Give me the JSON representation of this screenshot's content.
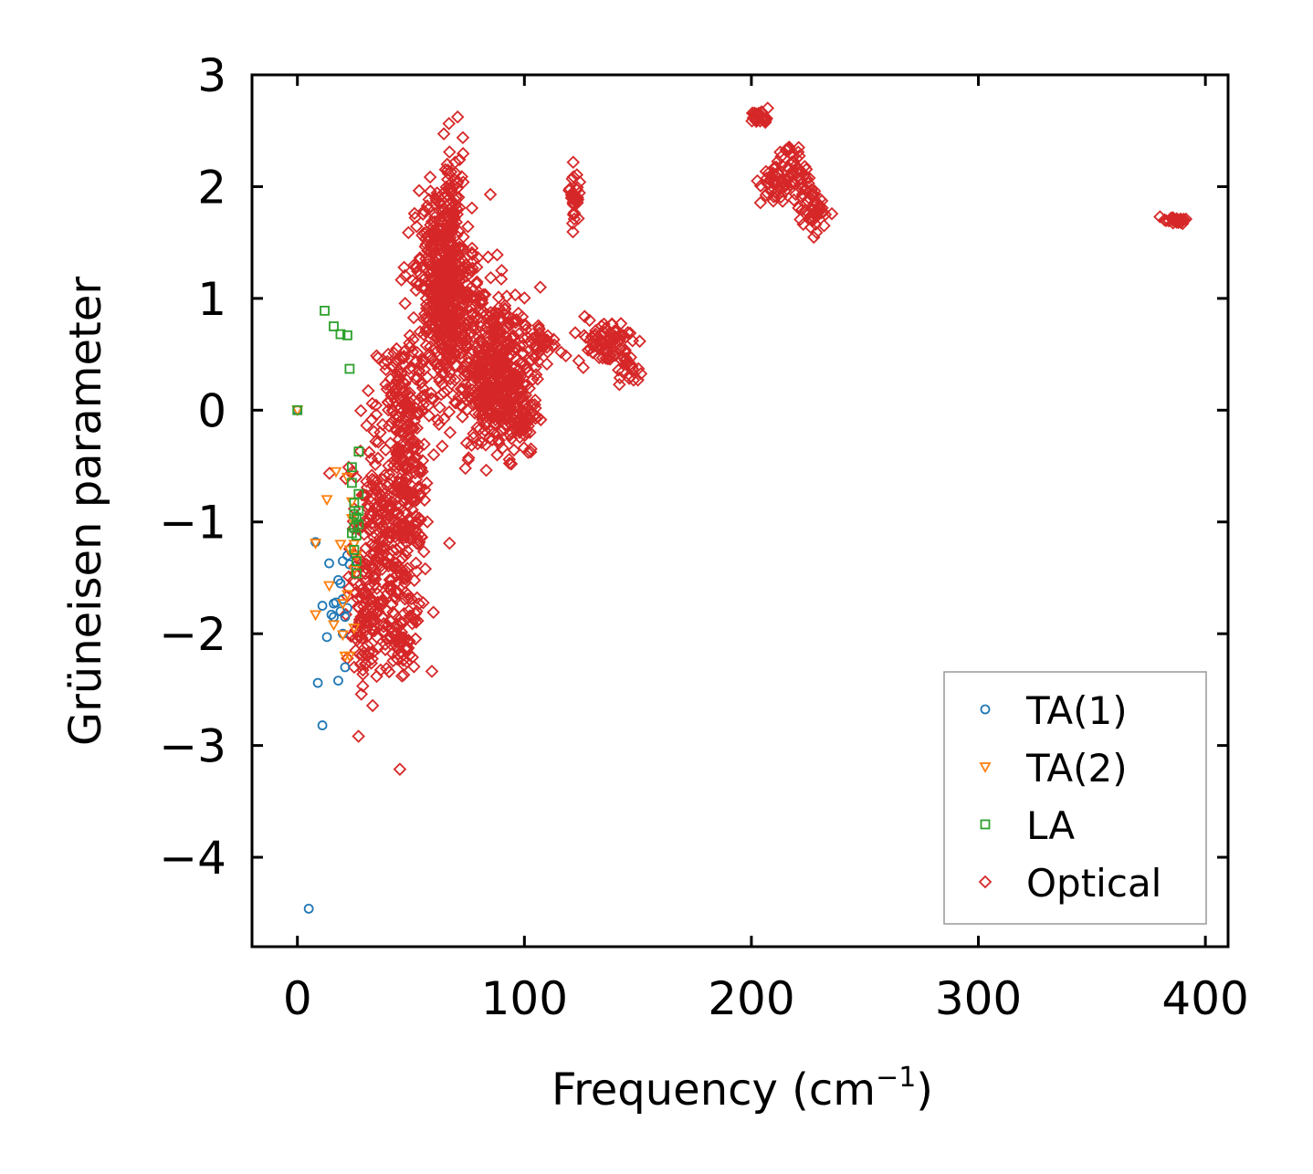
{
  "chart_data": {
    "type": "scatter",
    "title": "",
    "xlabel_main": "Frequency (cm",
    "xlabel_sup": "−1",
    "xlabel_close": ")",
    "ylabel": "Grüneisen parameter",
    "xlim": [
      -20,
      410
    ],
    "ylim": [
      -4.8,
      3.0
    ],
    "xticks": [
      0,
      100,
      200,
      300,
      400
    ],
    "yticks": [
      3,
      2,
      1,
      0,
      -1,
      -2,
      -3,
      -4
    ],
    "xtick_labels": [
      "0",
      "100",
      "200",
      "300",
      "400"
    ],
    "ytick_labels": [
      "3",
      "2",
      "1",
      "0",
      "−1",
      "−2",
      "−3",
      "−4"
    ],
    "legend_position": "lower-right",
    "series": [
      {
        "name": "TA(1)",
        "marker": "circle",
        "color": "#1f77b4",
        "points": [
          [
            0,
            0
          ],
          [
            5,
            -4.46
          ],
          [
            8,
            -1.18
          ],
          [
            9,
            -2.44
          ],
          [
            11,
            -2.82
          ],
          [
            11,
            -1.75
          ],
          [
            13,
            -2.03
          ],
          [
            14,
            -1.37
          ],
          [
            15,
            -1.83
          ],
          [
            16,
            -1.73
          ],
          [
            17,
            -1.72
          ],
          [
            18,
            -1.52
          ],
          [
            18,
            -2.42
          ],
          [
            19,
            -1.55
          ],
          [
            19,
            -1.8
          ],
          [
            20,
            -1.35
          ],
          [
            20,
            -1.69
          ],
          [
            21,
            -2.3
          ],
          [
            21,
            -1.85
          ],
          [
            22,
            -1.3
          ],
          [
            22,
            -1.77
          ],
          [
            23,
            -1.38
          ],
          [
            20,
            -2.0
          ],
          [
            16,
            -1.85
          ]
        ]
      },
      {
        "name": "TA(2)",
        "marker": "triangle-down",
        "color": "#ff7f0e",
        "points": [
          [
            0,
            0
          ],
          [
            8,
            -1.19
          ],
          [
            8,
            -1.83
          ],
          [
            13,
            -0.8
          ],
          [
            14,
            -1.57
          ],
          [
            16,
            -1.92
          ],
          [
            17,
            -0.55
          ],
          [
            19,
            -1.2
          ],
          [
            20,
            -1.73
          ],
          [
            20,
            -2.01
          ],
          [
            21,
            -2.2
          ],
          [
            22,
            -1.65
          ],
          [
            23,
            -2.2
          ],
          [
            23,
            -1.25
          ],
          [
            24,
            -0.82
          ],
          [
            24,
            -0.97
          ],
          [
            25,
            -1.2
          ],
          [
            25,
            -1.43
          ],
          [
            25,
            -1.95
          ],
          [
            26,
            -1.3
          ],
          [
            22,
            -0.6
          ]
        ]
      },
      {
        "name": "LA",
        "marker": "square",
        "color": "#2ca02c",
        "points": [
          [
            0,
            0
          ],
          [
            12,
            0.89
          ],
          [
            16,
            0.75
          ],
          [
            19,
            0.68
          ],
          [
            22,
            0.67
          ],
          [
            23,
            0.37
          ],
          [
            24,
            -0.51
          ],
          [
            24,
            -0.65
          ],
          [
            25,
            -0.83
          ],
          [
            25,
            -0.93
          ],
          [
            25,
            -1.05
          ],
          [
            26,
            -0.96
          ],
          [
            26,
            -1.12
          ],
          [
            26,
            -1.46
          ],
          [
            27,
            -0.37
          ],
          [
            27,
            -0.9
          ],
          [
            27,
            -1.02
          ],
          [
            25,
            -1.25
          ],
          [
            26,
            -1.35
          ],
          [
            24,
            -1.1
          ],
          [
            27,
            -0.75
          ]
        ]
      },
      {
        "name": "Optical",
        "marker": "diamond",
        "color": "#d62728",
        "generated": true,
        "clusters": [
          {
            "cx": 35,
            "cy": -1.2,
            "sx": 6,
            "sy": 0.55,
            "n": 220
          },
          {
            "cx": 30,
            "cy": -1.9,
            "sx": 3,
            "sy": 0.3,
            "n": 60
          },
          {
            "cx": 48,
            "cy": -0.8,
            "sx": 5,
            "sy": 0.6,
            "n": 280
          },
          {
            "cx": 45,
            "cy": -2.1,
            "sx": 3,
            "sy": 0.12,
            "n": 40
          },
          {
            "cx": 45,
            "cy": 0.2,
            "sx": 6,
            "sy": 0.25,
            "n": 60
          },
          {
            "cx": 62,
            "cy": 1.1,
            "sx": 5,
            "sy": 0.45,
            "n": 330
          },
          {
            "cx": 70,
            "cy": 0.9,
            "sx": 6,
            "sy": 0.35,
            "n": 260
          },
          {
            "cx": 68,
            "cy": 1.75,
            "sx": 3,
            "sy": 0.3,
            "n": 70
          },
          {
            "cx": 88,
            "cy": 0.4,
            "sx": 6,
            "sy": 0.3,
            "n": 300
          },
          {
            "cx": 96,
            "cy": 0.0,
            "sx": 5,
            "sy": 0.2,
            "n": 120
          },
          {
            "cx": 82,
            "cy": 0.1,
            "sx": 4,
            "sy": 0.25,
            "n": 80
          },
          {
            "cx": 108,
            "cy": 0.6,
            "sx": 3,
            "sy": 0.1,
            "n": 40
          },
          {
            "cx": 122,
            "cy": 1.92,
            "sx": 1,
            "sy": 0.12,
            "n": 35
          },
          {
            "cx": 135,
            "cy": 0.62,
            "sx": 6,
            "sy": 0.1,
            "n": 80
          },
          {
            "cx": 145,
            "cy": 0.38,
            "sx": 3,
            "sy": 0.05,
            "n": 20
          },
          {
            "cx": 204,
            "cy": 2.62,
            "sx": 2,
            "sy": 0.03,
            "n": 30
          },
          {
            "cx": 210,
            "cy": 2.02,
            "sx": 3,
            "sy": 0.1,
            "n": 40
          },
          {
            "cx": 218,
            "cy": 2.15,
            "sx": 3,
            "sy": 0.12,
            "n": 45
          },
          {
            "cx": 227,
            "cy": 1.8,
            "sx": 3,
            "sy": 0.1,
            "n": 50
          },
          {
            "cx": 387,
            "cy": 1.7,
            "sx": 2.5,
            "sy": 0.02,
            "n": 20
          }
        ],
        "points": [
          [
            67,
            2.31
          ],
          [
            66,
            2.2
          ],
          [
            85,
            1.93
          ],
          [
            107,
            1.1
          ],
          [
            84,
            1.37
          ],
          [
            88,
            1.39
          ],
          [
            90,
            1.25
          ],
          [
            74,
            -0.52
          ],
          [
            67,
            -1.19
          ],
          [
            52,
            -1.82
          ],
          [
            25,
            -2.3
          ],
          [
            22,
            -2.22
          ],
          [
            150,
            0.27
          ],
          [
            120,
            1.98
          ],
          [
            205,
            2.6
          ],
          [
            232,
            1.65
          ],
          [
            390,
            1.67
          ],
          [
            380,
            1.73
          ],
          [
            88,
            -0.4
          ],
          [
            40,
            0.5
          ],
          [
            33,
            0.06
          ],
          [
            52,
            0.28
          ],
          [
            58,
            -0.05
          ],
          [
            55,
            -0.55
          ],
          [
            47,
            -2.28
          ]
        ]
      }
    ]
  }
}
